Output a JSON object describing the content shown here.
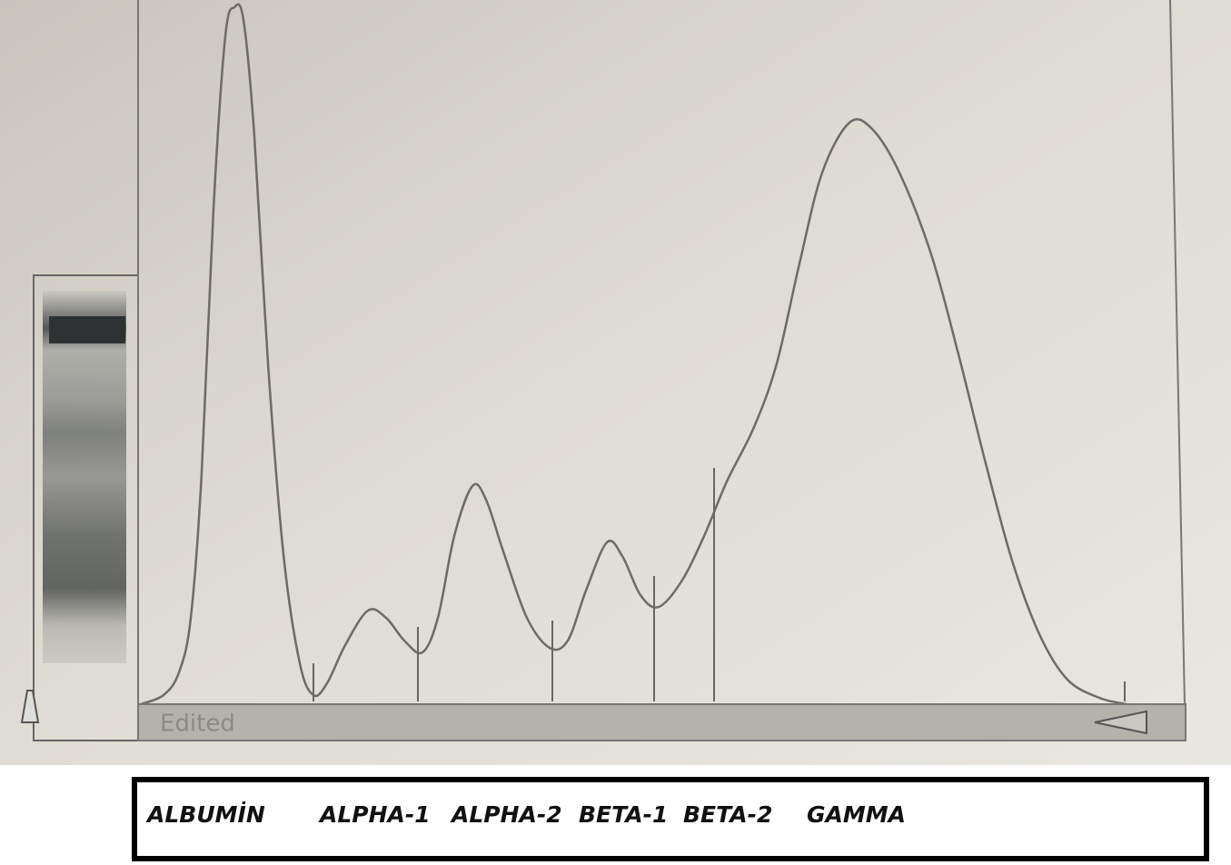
{
  "plot": {
    "status_label": "Edited"
  },
  "legend": {
    "fractions": [
      "ALBUMİN",
      "ALPHA-1",
      "ALPHA-2",
      "BETA-1",
      "BETA-2",
      "GAMMA"
    ]
  }
}
